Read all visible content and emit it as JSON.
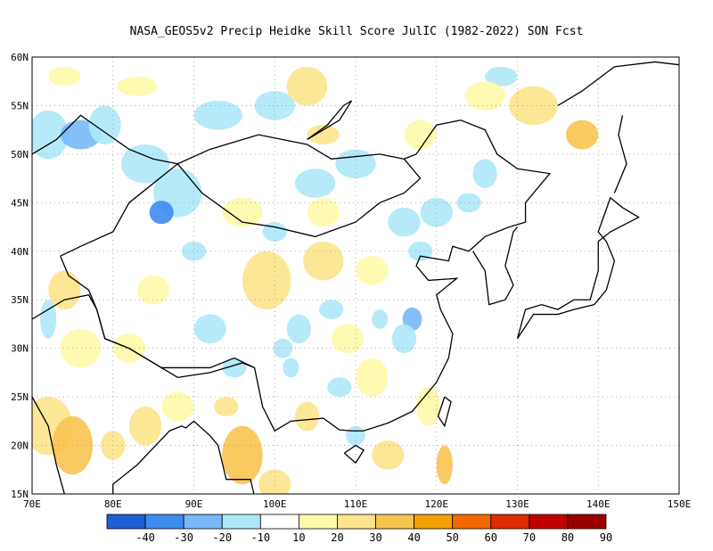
{
  "title": "NASA_GEOS5v2 Precip Heidke Skill Score JulIC (1982-2022) SON Fcst",
  "map": {
    "lon_range": [
      70,
      150
    ],
    "lat_range": [
      15,
      60
    ],
    "lon_ticks": [
      "70E",
      "80E",
      "90E",
      "100E",
      "110E",
      "120E",
      "130E",
      "140E",
      "150E"
    ],
    "lat_ticks": [
      "15N",
      "20N",
      "25N",
      "30N",
      "35N",
      "40N",
      "45N",
      "50N",
      "55N",
      "60N"
    ]
  },
  "colorbar": {
    "labels": [
      "-40",
      "-30",
      "-20",
      "-10",
      "10",
      "20",
      "30",
      "40",
      "50",
      "60",
      "70",
      "80",
      "90"
    ],
    "colors": [
      "#1e5fd8",
      "#3c8cf0",
      "#78b8f8",
      "#aee8f8",
      "#ffffff",
      "#fffaa8",
      "#fce48c",
      "#f8c450",
      "#f4a000",
      "#f46800",
      "#e02a00",
      "#c00000",
      "#9a0000"
    ]
  }
}
